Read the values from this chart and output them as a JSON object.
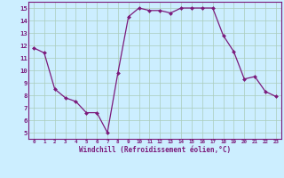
{
  "x": [
    0,
    1,
    2,
    3,
    4,
    5,
    6,
    7,
    8,
    9,
    10,
    11,
    12,
    13,
    14,
    15,
    16,
    17,
    18,
    19,
    20,
    21,
    22,
    23
  ],
  "y": [
    11.8,
    11.4,
    8.5,
    7.8,
    7.5,
    6.6,
    6.6,
    5.0,
    9.8,
    14.3,
    15.0,
    14.8,
    14.8,
    14.6,
    15.0,
    15.0,
    15.0,
    15.0,
    12.8,
    11.5,
    9.3,
    9.5,
    8.3,
    7.9
  ],
  "xlim": [
    -0.5,
    23.5
  ],
  "ylim": [
    4.5,
    15.5
  ],
  "yticks": [
    5,
    6,
    7,
    8,
    9,
    10,
    11,
    12,
    13,
    14,
    15
  ],
  "xticks": [
    0,
    1,
    2,
    3,
    4,
    5,
    6,
    7,
    8,
    9,
    10,
    11,
    12,
    13,
    14,
    15,
    16,
    17,
    18,
    19,
    20,
    21,
    22,
    23
  ],
  "xlabel": "Windchill (Refroidissement éolien,°C)",
  "line_color": "#7b1a7b",
  "marker_color": "#7b1a7b",
  "bg_color": "#cceeff",
  "grid_color": "#aaccbb",
  "axis_label_color": "#7b1a7b",
  "tick_label_color": "#7b1a7b",
  "border_color": "#7b1a7b",
  "xlabel_fontsize": 5.5,
  "tick_fontsize_x": 4.2,
  "tick_fontsize_y": 5.2
}
